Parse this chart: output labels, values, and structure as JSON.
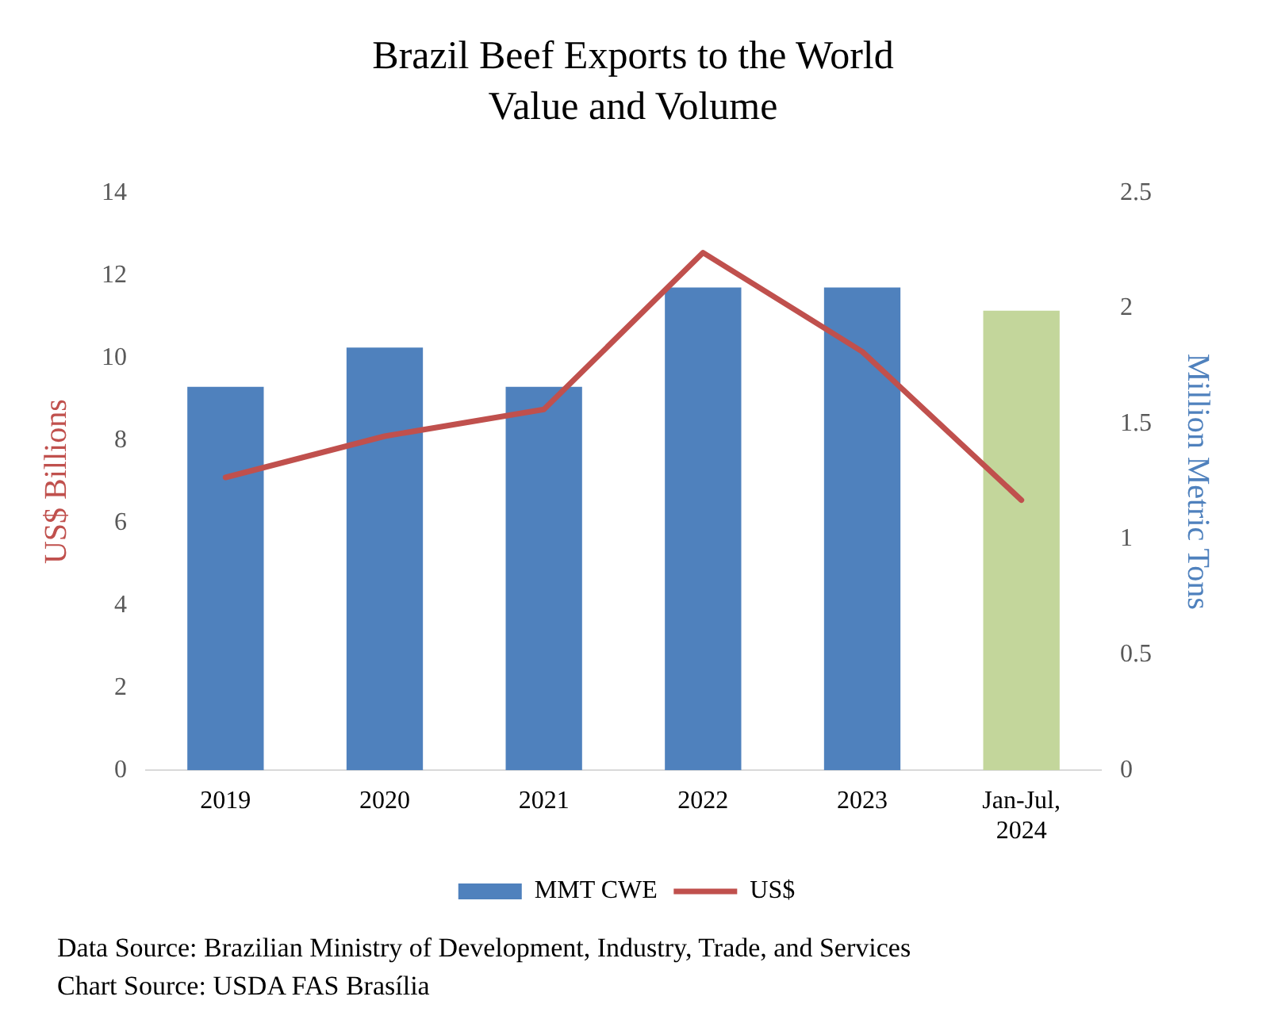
{
  "chart_data": {
    "type": "bar",
    "title": "Brazil Beef Exports to the World",
    "subtitle": "Value and Volume",
    "ylabel": "US$ Billions",
    "y2label": "Million Metric Tons",
    "categories": [
      "2019",
      "2020",
      "2021",
      "2022",
      "2023",
      "Jan-Jul, 2024"
    ],
    "series": [
      {
        "name": "MMT CWE",
        "axis": "y2",
        "color": "#4f81bd",
        "colors": [
          "#4f81bd",
          "#4f81bd",
          "#4f81bd",
          "#4f81bd",
          "#4f81bd",
          "#c3d69b"
        ],
        "values": [
          1.66,
          1.83,
          1.66,
          2.09,
          2.09,
          1.99
        ]
      },
      {
        "name": "US$",
        "type": "line",
        "axis": "y",
        "color": "#c0504d",
        "values": [
          7.1,
          8.1,
          8.75,
          12.55,
          10.15,
          6.55
        ]
      }
    ],
    "ylim": [
      0,
      14
    ],
    "yticks": [
      0,
      2,
      4,
      6,
      8,
      10,
      12,
      14
    ],
    "y2lim": [
      0,
      2.5
    ],
    "y2ticks": [
      0,
      0.5,
      1,
      1.5,
      2,
      2.5
    ],
    "grid": false,
    "legend": "bottom",
    "marker": "none",
    "line_style": "solid",
    "annotations": [
      "Data Source: Brazilian Ministry of Development, Industry, Trade, and Services",
      "Chart Source: USDA FAS Brasília"
    ]
  }
}
